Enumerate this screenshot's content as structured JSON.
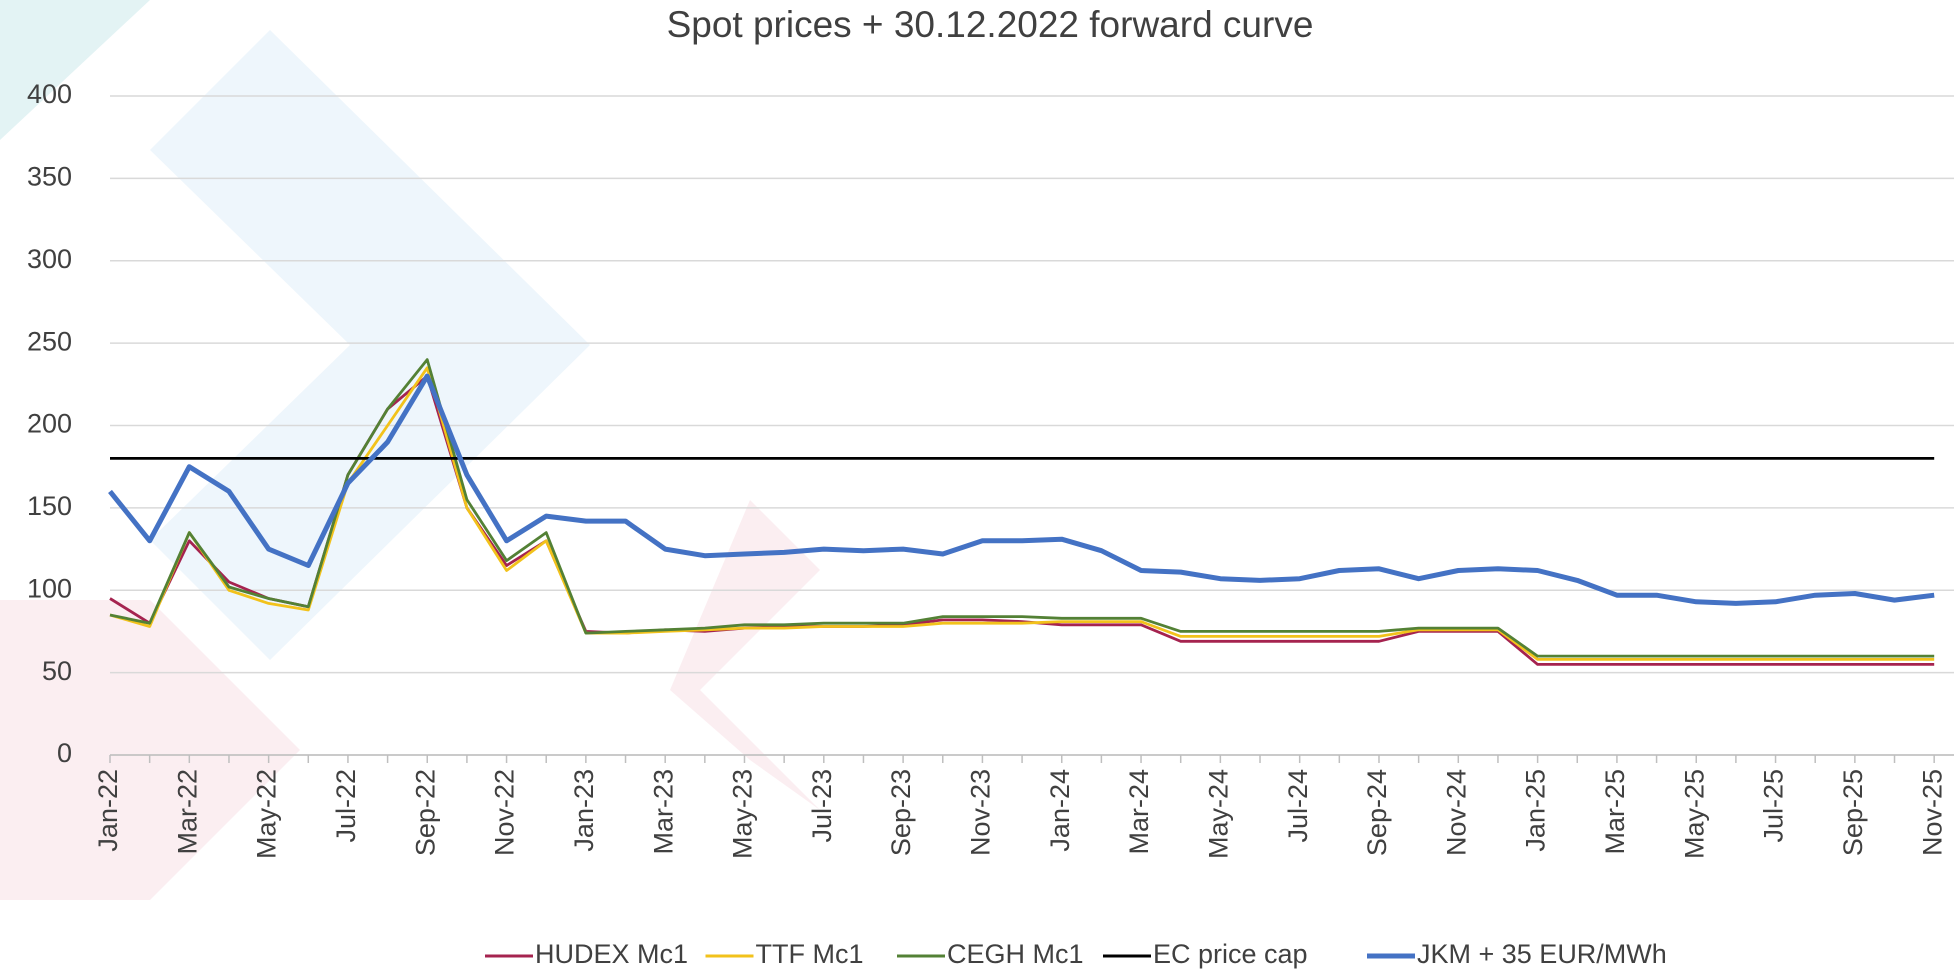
{
  "chart_data": {
    "type": "line",
    "title": "Spot prices + 30.12.2022 forward curve",
    "categories": [
      "Jan-22",
      null,
      "Mar-22",
      null,
      "May-22",
      null,
      "Jul-22",
      null,
      "Sep-22",
      null,
      "Nov-22",
      null,
      "Jan-23",
      null,
      "Mar-23",
      null,
      "May-23",
      null,
      "Jul-23",
      null,
      "Sep-23",
      null,
      "Nov-23",
      null,
      "Jan-24",
      null,
      "Mar-24",
      null,
      "May-24",
      null,
      "Jul-24",
      null,
      "Sep-24",
      null,
      "Nov-24",
      null,
      "Jan-25",
      null,
      "Mar-25",
      null,
      "May-25",
      null,
      "Jul-25",
      null,
      "Sep-25",
      null,
      "Nov-25"
    ],
    "series": [
      {
        "name": "HUDEX Mc1",
        "color": "#a5234f",
        "values": [
          95,
          80,
          130,
          105,
          95,
          90,
          170,
          210,
          230,
          150,
          115,
          130,
          75,
          74,
          76,
          75,
          77,
          78,
          78,
          78,
          79,
          82,
          82,
          81,
          79,
          79,
          79,
          69,
          69,
          69,
          69,
          69,
          69,
          75,
          75,
          75,
          55,
          55,
          55,
          55,
          55,
          55,
          55,
          55,
          55,
          55,
          55
        ]
      },
      {
        "name": "TTF Mc1",
        "color": "#f2c21b",
        "values": [
          85,
          78,
          135,
          100,
          92,
          88,
          165,
          200,
          235,
          150,
          112,
          130,
          74,
          74,
          75,
          76,
          77,
          77,
          78,
          78,
          78,
          80,
          80,
          80,
          81,
          81,
          81,
          72,
          72,
          72,
          72,
          72,
          72,
          76,
          76,
          76,
          58,
          58,
          58,
          58,
          58,
          58,
          58,
          58,
          58,
          58,
          58
        ]
      },
      {
        "name": "CEGH Mc1",
        "color": "#538135",
        "values": [
          85,
          80,
          135,
          102,
          95,
          90,
          170,
          210,
          240,
          155,
          118,
          135,
          74,
          75,
          76,
          77,
          79,
          79,
          80,
          80,
          80,
          84,
          84,
          84,
          83,
          83,
          83,
          75,
          75,
          75,
          75,
          75,
          75,
          77,
          77,
          77,
          60,
          60,
          60,
          60,
          60,
          60,
          60,
          60,
          60,
          60,
          60
        ]
      },
      {
        "name": "EC price cap",
        "color": "#000000",
        "values": [
          180,
          180,
          180,
          180,
          180,
          180,
          180,
          180,
          180,
          180,
          180,
          180,
          180,
          180,
          180,
          180,
          180,
          180,
          180,
          180,
          180,
          180,
          180,
          180,
          180,
          180,
          180,
          180,
          180,
          180,
          180,
          180,
          180,
          180,
          180,
          180,
          180,
          180,
          180,
          180,
          180,
          180,
          180,
          180,
          180,
          180,
          180
        ]
      },
      {
        "name": "JKM + 35 EUR/MWh",
        "color": "#4472c4",
        "values": [
          160,
          130,
          175,
          160,
          125,
          115,
          165,
          190,
          230,
          170,
          130,
          145,
          142,
          142,
          125,
          121,
          122,
          123,
          125,
          124,
          125,
          122,
          130,
          130,
          131,
          124,
          112,
          111,
          107,
          106,
          107,
          112,
          113,
          107,
          112,
          113,
          112,
          106,
          97,
          97,
          93,
          92,
          93,
          97,
          98,
          94,
          97
        ]
      }
    ],
    "ylim": [
      0,
      400
    ],
    "yticks": [
      0,
      50,
      100,
      150,
      200,
      250,
      300,
      350,
      400
    ],
    "grid": true,
    "legend": "bottom"
  }
}
